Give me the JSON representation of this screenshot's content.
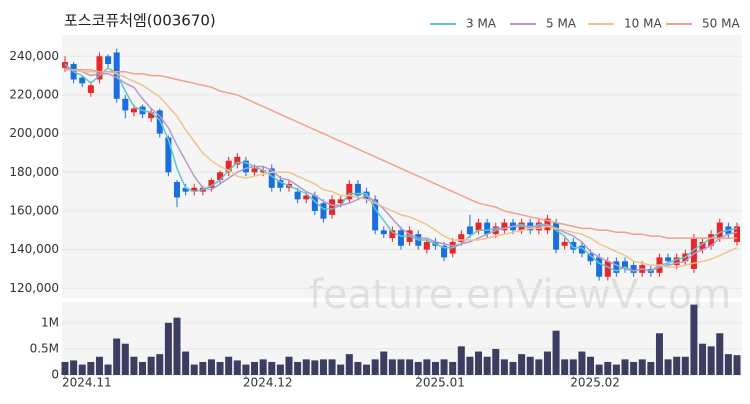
{
  "chart_data": {
    "type": "candlestick",
    "title": "포스코퓨처엠(003670)",
    "watermark": "feature.enViewV.com",
    "categories": [
      "2024.11",
      null,
      null,
      null,
      null,
      null,
      null,
      null,
      null,
      null,
      null,
      null,
      null,
      null,
      null,
      null,
      null,
      null,
      null,
      null,
      null,
      "2024.12",
      null,
      null,
      null,
      null,
      null,
      null,
      null,
      null,
      null,
      null,
      null,
      null,
      null,
      null,
      null,
      null,
      null,
      null,
      null,
      "2025.01",
      null,
      null,
      null,
      null,
      null,
      null,
      null,
      null,
      null,
      null,
      null,
      null,
      null,
      null,
      null,
      null,
      null,
      "2025.02",
      null,
      null,
      null,
      null,
      null,
      null,
      null,
      null,
      null,
      null,
      null,
      null,
      null,
      null,
      null,
      null,
      null,
      null,
      null
    ],
    "open": [
      234000,
      236000,
      229000,
      221000,
      228000,
      240000,
      242000,
      218000,
      211000,
      214000,
      208000,
      212000,
      198000,
      175000,
      172000,
      170000,
      170000,
      172000,
      176000,
      180000,
      184000,
      186000,
      180000,
      180000,
      182000,
      176000,
      172000,
      170000,
      166000,
      168000,
      164000,
      158000,
      164000,
      166000,
      174000,
      170000,
      166000,
      150000,
      146000,
      150000,
      144000,
      148000,
      140000,
      144000,
      142000,
      138000,
      144000,
      152000,
      150000,
      154000,
      148000,
      150000,
      154000,
      150000,
      154000,
      150000,
      150000,
      154000,
      142000,
      144000,
      142000,
      138000,
      136000,
      126000,
      134000,
      134000,
      132000,
      128000,
      130000,
      128000,
      136000,
      132000,
      134000,
      130000,
      140000,
      142000,
      146000,
      152000,
      144000
    ],
    "high": [
      240000,
      237000,
      230000,
      227000,
      242000,
      241000,
      244000,
      220000,
      215000,
      215000,
      213000,
      213000,
      199000,
      176000,
      174000,
      174000,
      173000,
      177000,
      181000,
      188000,
      190000,
      188000,
      184000,
      183000,
      184000,
      178000,
      176000,
      172000,
      170000,
      170000,
      166000,
      168000,
      168000,
      176000,
      176000,
      172000,
      168000,
      152000,
      152000,
      152000,
      152000,
      150000,
      146000,
      146000,
      144000,
      146000,
      150000,
      158000,
      156000,
      156000,
      154000,
      156000,
      156000,
      156000,
      156000,
      156000,
      158000,
      156000,
      146000,
      146000,
      144000,
      140000,
      138000,
      136000,
      136000,
      136000,
      134000,
      134000,
      132000,
      138000,
      138000,
      138000,
      140000,
      148000,
      146000,
      150000,
      156000,
      154000,
      154000
    ],
    "low": [
      232000,
      226000,
      224000,
      219000,
      226000,
      234000,
      216000,
      208000,
      209000,
      208000,
      206000,
      198000,
      178000,
      162000,
      168000,
      168000,
      168000,
      170000,
      174000,
      178000,
      182000,
      178000,
      178000,
      178000,
      170000,
      170000,
      170000,
      164000,
      164000,
      158000,
      154000,
      156000,
      162000,
      164000,
      166000,
      164000,
      148000,
      146000,
      144000,
      140000,
      142000,
      140000,
      138000,
      140000,
      134000,
      136000,
      142000,
      146000,
      148000,
      146000,
      146000,
      148000,
      148000,
      148000,
      148000,
      148000,
      148000,
      138000,
      140000,
      138000,
      136000,
      132000,
      124000,
      124000,
      126000,
      128000,
      126000,
      126000,
      126000,
      126000,
      132000,
      130000,
      132000,
      128000,
      138000,
      140000,
      144000,
      146000,
      142000
    ],
    "close": [
      237000,
      228000,
      226000,
      225000,
      240000,
      236000,
      218000,
      212000,
      213000,
      210000,
      211000,
      200000,
      180000,
      167000,
      170000,
      172000,
      172000,
      176000,
      180000,
      186000,
      188000,
      180000,
      182000,
      181000,
      172000,
      172000,
      174000,
      166000,
      168000,
      160000,
      156000,
      166000,
      166000,
      174000,
      168000,
      166000,
      150000,
      148000,
      150000,
      142000,
      150000,
      142000,
      144000,
      142000,
      136000,
      144000,
      148000,
      148000,
      154000,
      148000,
      152000,
      154000,
      150000,
      154000,
      150000,
      154000,
      156000,
      140000,
      144000,
      140000,
      138000,
      134000,
      126000,
      134000,
      128000,
      130000,
      128000,
      132000,
      128000,
      136000,
      134000,
      136000,
      138000,
      146000,
      144000,
      148000,
      154000,
      148000,
      152000
    ],
    "up_color": "#e8262b",
    "down_color": "#1a6fdf",
    "ylim": [
      115000,
      251000
    ],
    "yticks": [
      {
        "value": 120000,
        "label": "120,000"
      },
      {
        "value": 140000,
        "label": "140,000"
      },
      {
        "value": 160000,
        "label": "160,000"
      },
      {
        "value": 180000,
        "label": "180,000"
      },
      {
        "value": 200000,
        "label": "200,000"
      },
      {
        "value": 220000,
        "label": "220,000"
      },
      {
        "value": 240000,
        "label": "240,000"
      }
    ],
    "grid": true,
    "legend": "top-right",
    "series": [
      {
        "name": "3 MA",
        "color": "#5ec8cc",
        "values": [
          236000,
          232000,
          230000,
          226000,
          230000,
          234000,
          231000,
          222000,
          214000,
          212000,
          211000,
          207000,
          197000,
          182000,
          172000,
          170000,
          171000,
          173000,
          176000,
          181000,
          185000,
          185000,
          183000,
          181000,
          178000,
          175000,
          173000,
          171000,
          169000,
          165000,
          161000,
          161000,
          163000,
          169000,
          169000,
          169000,
          161000,
          155000,
          149000,
          147000,
          147000,
          145000,
          145000,
          143000,
          141000,
          141000,
          143000,
          147000,
          150000,
          150000,
          151000,
          151000,
          152000,
          153000,
          151000,
          153000,
          153000,
          150000,
          147000,
          141000,
          141000,
          137000,
          133000,
          131000,
          129000,
          131000,
          129000,
          130000,
          129000,
          132000,
          133000,
          135000,
          136000,
          140000,
          143000,
          146000,
          149000,
          150000,
          151000
        ]
      },
      {
        "name": "5 MA",
        "color": "#b49ad0",
        "values": [
          234000,
          233000,
          232000,
          230000,
          231000,
          231000,
          229000,
          226000,
          224000,
          218000,
          213000,
          209000,
          203000,
          194000,
          186000,
          178000,
          172000,
          171000,
          174000,
          177000,
          180000,
          182000,
          183000,
          183000,
          181000,
          177000,
          176000,
          173000,
          170000,
          168000,
          165000,
          163000,
          163000,
          164000,
          166000,
          168000,
          165000,
          161000,
          156000,
          151000,
          148000,
          146000,
          146000,
          144000,
          143000,
          142000,
          143000,
          144000,
          146000,
          148000,
          150000,
          151000,
          152000,
          152000,
          152000,
          152000,
          153000,
          151000,
          149000,
          147000,
          144000,
          139000,
          136000,
          134000,
          132000,
          130000,
          129000,
          130000,
          129000,
          131000,
          132000,
          133000,
          134000,
          138000,
          140000,
          142000,
          146000,
          148000,
          149000
        ]
      },
      {
        "name": "10 MA",
        "color": "#f0c48a",
        "values": [
          233000,
          233000,
          232000,
          232000,
          232000,
          232000,
          231000,
          229000,
          227000,
          225000,
          222000,
          219000,
          214000,
          209000,
          202000,
          196000,
          190000,
          186000,
          183000,
          181000,
          178000,
          177000,
          178000,
          179000,
          180000,
          180000,
          180000,
          178000,
          176000,
          174000,
          171000,
          170000,
          168000,
          168000,
          167000,
          166000,
          164000,
          162000,
          160000,
          158000,
          157000,
          155000,
          153000,
          150000,
          147000,
          145000,
          145000,
          145000,
          145000,
          146000,
          147000,
          148000,
          149000,
          150000,
          151000,
          151000,
          152000,
          151000,
          150000,
          149000,
          148000,
          146000,
          143000,
          141000,
          139000,
          137000,
          134000,
          133000,
          132000,
          132000,
          131000,
          131000,
          132000,
          133000,
          134000,
          135000,
          137000,
          139000,
          141000
        ]
      },
      {
        "name": "50 MA",
        "color": "#f4a08c",
        "values": [
          233000,
          233000,
          233000,
          233000,
          232000,
          232000,
          232000,
          232000,
          231000,
          231000,
          230000,
          230000,
          229000,
          228000,
          227000,
          226000,
          225000,
          224000,
          222000,
          221000,
          220000,
          218000,
          216000,
          214000,
          212000,
          210000,
          208000,
          206000,
          204000,
          202000,
          200000,
          198000,
          196000,
          194000,
          192000,
          190000,
          188000,
          186000,
          184000,
          182000,
          180000,
          178000,
          176000,
          174000,
          172000,
          170000,
          168000,
          166000,
          164000,
          163000,
          162000,
          160000,
          159000,
          158000,
          157000,
          156000,
          155000,
          154000,
          153000,
          152000,
          151000,
          151000,
          150000,
          150000,
          149000,
          149000,
          148000,
          148000,
          147000,
          147000,
          146000,
          146000,
          146000,
          146000,
          146000,
          146000,
          146000,
          146000,
          146000
        ]
      }
    ],
    "volume": {
      "color": "#3d3d63",
      "values": [
        250000,
        280000,
        200000,
        250000,
        350000,
        200000,
        700000,
        600000,
        350000,
        250000,
        350000,
        400000,
        1000000,
        1100000,
        450000,
        200000,
        250000,
        300000,
        250000,
        350000,
        280000,
        200000,
        250000,
        300000,
        250000,
        200000,
        350000,
        250000,
        300000,
        280000,
        300000,
        300000,
        200000,
        400000,
        250000,
        200000,
        300000,
        450000,
        300000,
        300000,
        300000,
        250000,
        300000,
        250000,
        300000,
        250000,
        550000,
        350000,
        450000,
        350000,
        500000,
        300000,
        250000,
        400000,
        350000,
        300000,
        450000,
        850000,
        300000,
        300000,
        450000,
        350000,
        200000,
        250000,
        200000,
        300000,
        250000,
        300000,
        250000,
        800000,
        300000,
        350000,
        350000,
        1350000,
        600000,
        550000,
        800000,
        400000,
        380000
      ],
      "ylim": [
        0,
        1400000
      ],
      "yticks": [
        0,
        {
          "value": 500000,
          "label": "0.5M"
        },
        {
          "value": 1000000,
          "label": "1M"
        }
      ]
    }
  }
}
